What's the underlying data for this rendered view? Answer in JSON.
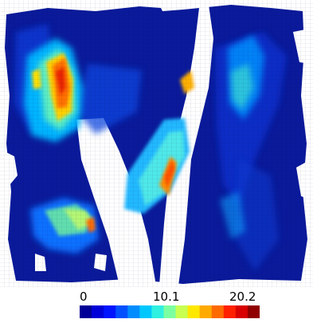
{
  "colorbar": {
    "min_label": "0",
    "mid_label": "10.1",
    "max_label": "20.2",
    "min_value": 0,
    "max_value": 20.2,
    "colors": [
      "#000096",
      "#0000d8",
      "#0014ff",
      "#0050ff",
      "#008cff",
      "#00c8ff",
      "#30f0e0",
      "#7cffa0",
      "#c8ff50",
      "#ffe800",
      "#ffaa00",
      "#ff6a00",
      "#ff2000",
      "#d80000",
      "#900000"
    ]
  },
  "background_color": "#ffffff",
  "surface_color": "#0a1a9a"
}
